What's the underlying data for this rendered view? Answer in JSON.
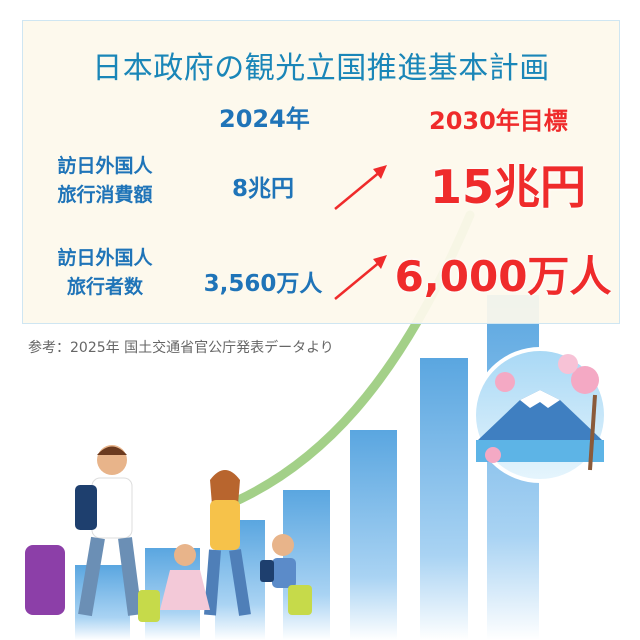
{
  "title": "日本政府の観光立国推進基本計画",
  "columns": {
    "current": "2024年",
    "target": "2030年目標"
  },
  "rows": [
    {
      "label_line1": "訪日外国人",
      "label_line2": "旅行消費額",
      "current": "8兆円",
      "target": "15兆円"
    },
    {
      "label_line1": "訪日外国人",
      "label_line2": "旅行者数",
      "current": "3,560万人",
      "target": "6,000万人"
    }
  ],
  "source": "参考：2025年 国土交通省官公庁発表データより",
  "colors": {
    "title": "#1a86b8",
    "current": "#1f74b8",
    "target": "#ef2b2b",
    "panel": "#fdf9ec",
    "bars": "#6fb3e6",
    "growth_arrow": "#8cc46a"
  },
  "icons": [
    "up-arrow-icon",
    "mount-fuji-badge",
    "family-travelers-illustration"
  ]
}
